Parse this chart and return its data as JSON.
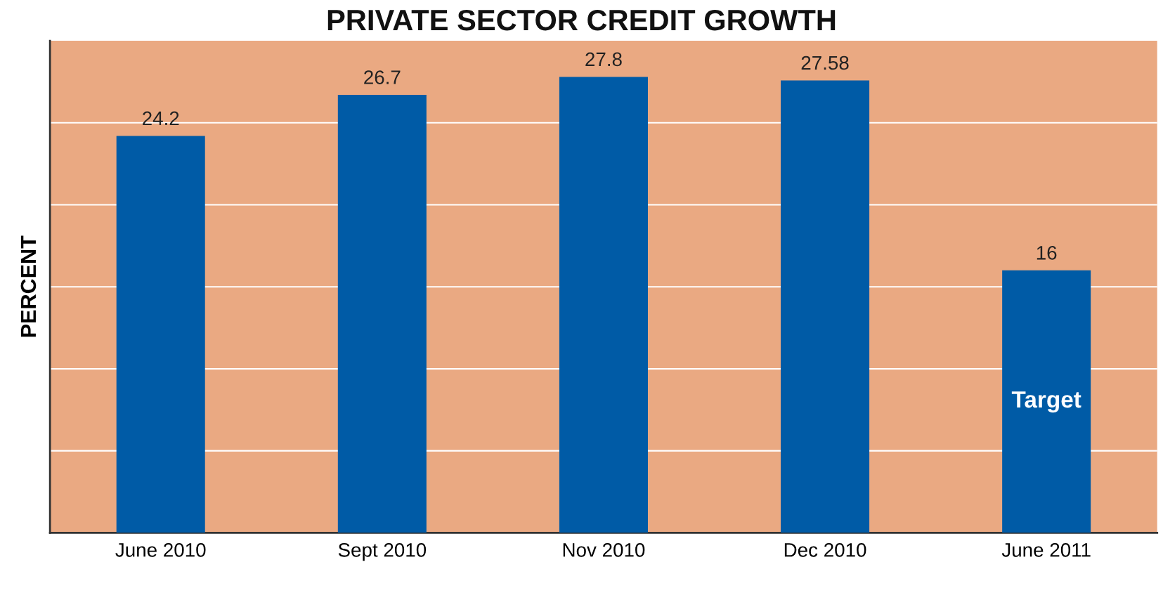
{
  "chart_data": {
    "type": "bar",
    "title": "PRIVATE SECTOR CREDIT GROWTH",
    "ylabel": "PERCENT",
    "categories": [
      "June 2010",
      "Sept 2010",
      "Nov 2010",
      "Dec 2010",
      "June 2011"
    ],
    "values": [
      24.2,
      26.7,
      27.8,
      27.58,
      16
    ],
    "color": "#005ba6",
    "value_labels": [
      "24.2",
      "26.7",
      "27.8",
      "27.58",
      "16"
    ],
    "ylim": [
      0,
      30
    ],
    "yticks": [
      {
        "value": 5,
        "label": null
      },
      {
        "value": 10,
        "label": null
      },
      {
        "value": 15,
        "label": null
      },
      {
        "value": 20,
        "label": null
      },
      {
        "value": 25,
        "label": null
      }
    ],
    "tick_labels": "x",
    "grid": "y",
    "annotations": [
      "Target"
    ]
  }
}
